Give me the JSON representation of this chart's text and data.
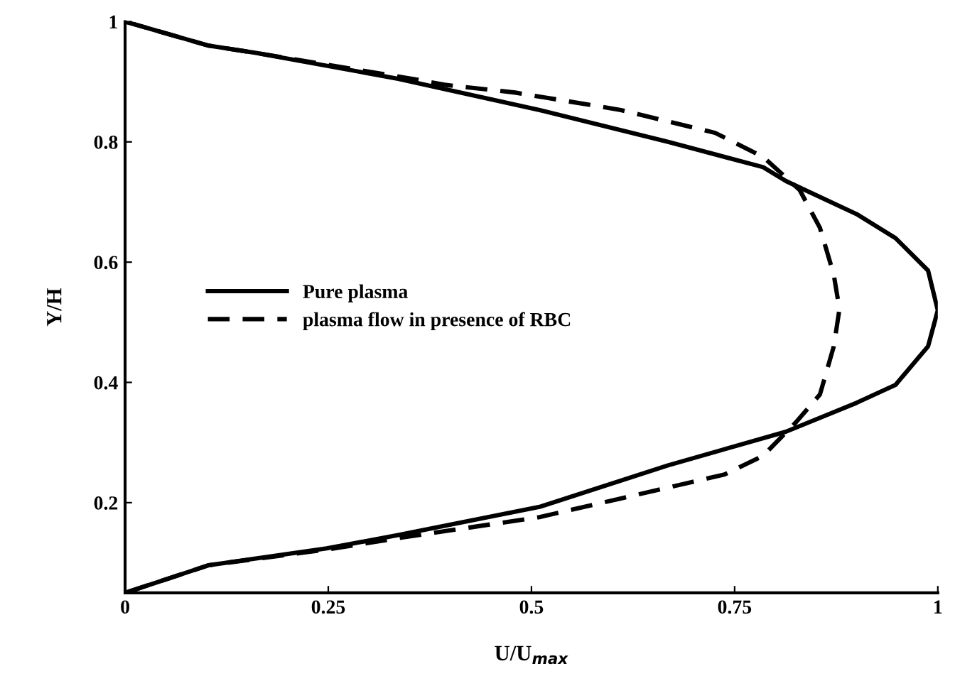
{
  "chart_data": {
    "type": "line",
    "xlabel": "U/U$_{max}$",
    "ylabel": "Y/H",
    "xlim": [
      0,
      1
    ],
    "ylim": [
      0.05,
      1
    ],
    "xticks": [
      0,
      0.25,
      0.5,
      0.75,
      1
    ],
    "yticks": [
      0.2,
      0.4,
      0.6,
      0.8,
      1
    ],
    "grid": false,
    "legend": "left",
    "marker": "none",
    "series": [
      {
        "name": "Pure plasma",
        "color": "#000000",
        "line_style": "solid",
        "x": [
          0,
          0.103,
          0.161,
          0.336,
          0.51,
          0.668,
          0.785,
          0.813,
          0.9,
          0.948,
          0.988,
          1.0,
          0.988,
          0.948,
          0.9,
          0.813,
          0.668,
          0.51,
          0.336,
          0.248,
          0.103,
          0
        ],
        "values": [
          1,
          0.96,
          0.948,
          0.905,
          0.853,
          0.8,
          0.758,
          0.735,
          0.68,
          0.64,
          0.586,
          0.52,
          0.46,
          0.396,
          0.366,
          0.318,
          0.262,
          0.193,
          0.146,
          0.124,
          0.096,
          0.05
        ]
      },
      {
        "name": "plasma flow in presence of RBC",
        "color": "#000000",
        "line_style": "dashed",
        "x": [
          0,
          0.103,
          0.161,
          0.353,
          0.393,
          0.48,
          0.61,
          0.726,
          0.785,
          0.83,
          0.855,
          0.872,
          0.879,
          0.872,
          0.855,
          0.825,
          0.785,
          0.738,
          0.61,
          0.51,
          0.336,
          0.248,
          0.103,
          0
        ],
        "values": [
          1,
          0.96,
          0.948,
          0.905,
          0.895,
          0.882,
          0.853,
          0.815,
          0.775,
          0.72,
          0.657,
          0.579,
          0.522,
          0.46,
          0.38,
          0.333,
          0.278,
          0.247,
          0.207,
          0.176,
          0.141,
          0.122,
          0.096,
          0.05
        ]
      }
    ]
  }
}
